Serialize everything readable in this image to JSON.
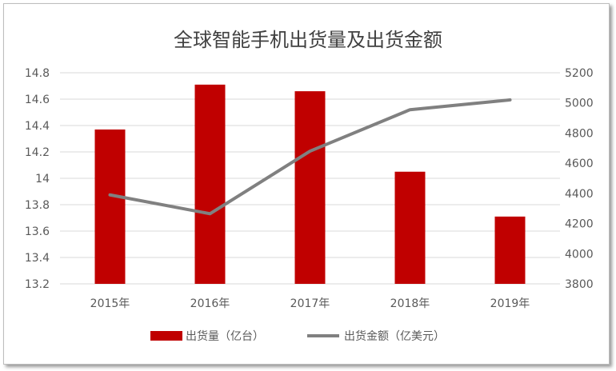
{
  "chart_data": {
    "type": "bar+line",
    "title": "全球智能手机出货量及出货金额",
    "categories": [
      "2015年",
      "2016年",
      "2017年",
      "2018年",
      "2019年"
    ],
    "series": [
      {
        "name": "出货量（亿台）",
        "type": "bar",
        "axis": "left",
        "color": "#c00000",
        "values": [
          14.37,
          14.71,
          14.66,
          14.05,
          13.71
        ]
      },
      {
        "name": "出货金额（亿美元）",
        "type": "line",
        "axis": "right",
        "color": "#808080",
        "values": [
          4390,
          4265,
          4680,
          4955,
          5020
        ]
      }
    ],
    "left_axis": {
      "ylim": [
        13.2,
        14.8
      ],
      "ticks": [
        "13.2",
        "13.4",
        "13.6",
        "13.8",
        "14",
        "14.2",
        "14.4",
        "14.6",
        "14.8"
      ]
    },
    "right_axis": {
      "ylim": [
        3800,
        5200
      ],
      "ticks": [
        "3800",
        "4000",
        "4200",
        "4400",
        "4600",
        "4800",
        "5000",
        "5200"
      ]
    },
    "grid": true,
    "legend": "bottom"
  }
}
